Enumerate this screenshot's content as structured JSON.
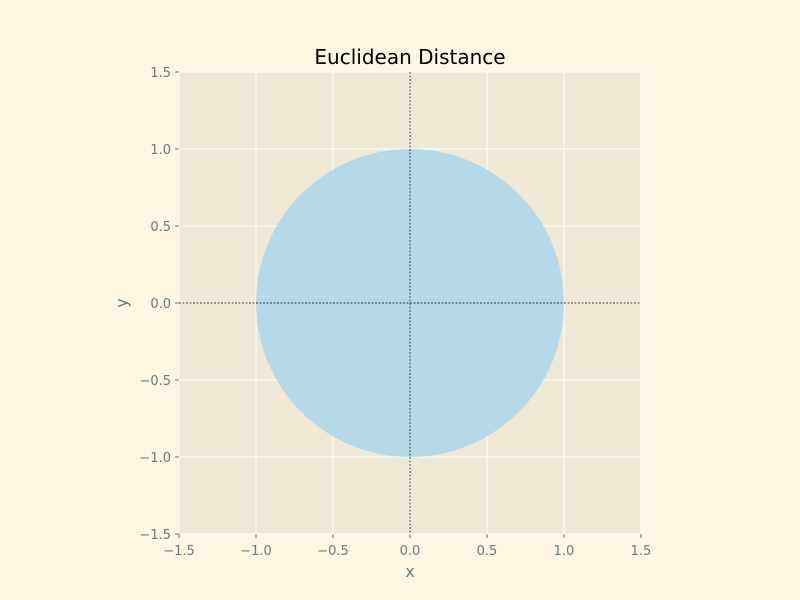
{
  "chart_data": {
    "type": "area",
    "title": "Euclidean Distance",
    "xlabel": "x",
    "ylabel": "y",
    "xlim": [
      -1.5,
      1.5
    ],
    "ylim": [
      -1.5,
      1.5
    ],
    "x_ticks": [
      -1.5,
      -1.0,
      -0.5,
      0.0,
      0.5,
      1.0,
      1.5
    ],
    "y_ticks": [
      -1.5,
      -1.0,
      -0.5,
      0.0,
      0.5,
      1.0,
      1.5
    ],
    "x_tick_labels": [
      "−1.5",
      "−1.0",
      "−0.5",
      "0.0",
      "0.5",
      "1.0",
      "1.5"
    ],
    "y_tick_labels": [
      "−1.5",
      "−1.0",
      "−0.5",
      "0.0",
      "0.5",
      "1.0",
      "1.5"
    ],
    "grid": true,
    "shapes": [
      {
        "shape": "unit-circle",
        "center": [
          0,
          0
        ],
        "radius": 1.0,
        "fill": "#a6d4ec",
        "opacity": 0.8
      }
    ],
    "reference_lines": [
      {
        "orientation": "horizontal",
        "y": 0,
        "style": "dashed",
        "color": "#000000"
      },
      {
        "orientation": "vertical",
        "x": 0,
        "style": "dashed",
        "color": "#000000"
      }
    ]
  },
  "colors": {
    "figure_bg": "#fdf6e3",
    "axes_bg": "#eee8d5",
    "grid": "#ffffff",
    "tick": "#657b83",
    "title": "#000000",
    "fill": "#a6d4ec"
  }
}
